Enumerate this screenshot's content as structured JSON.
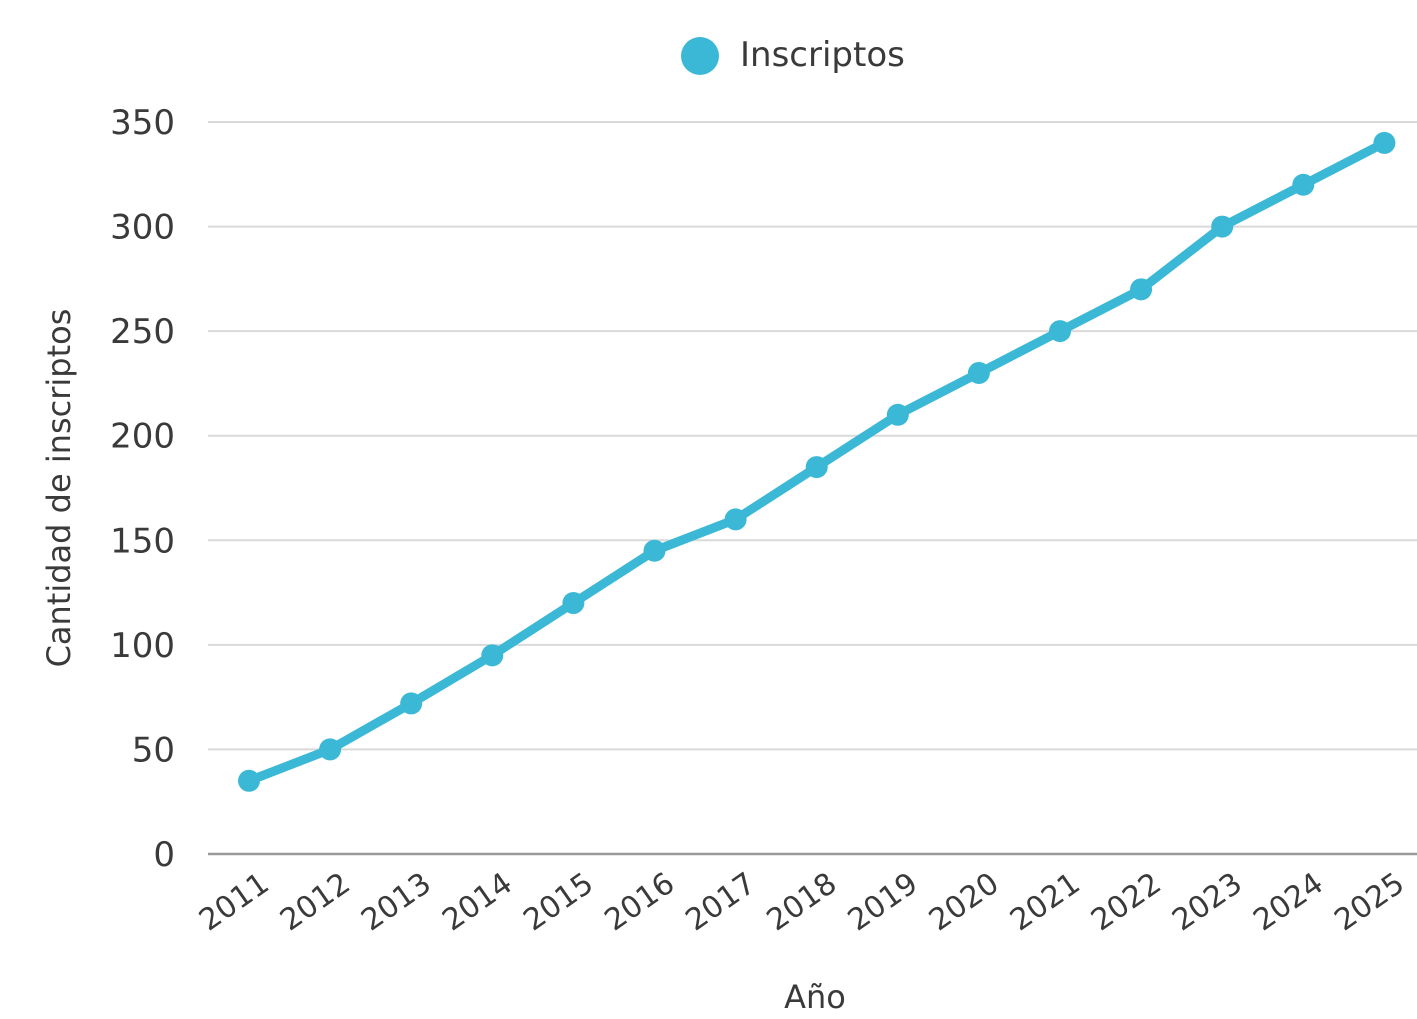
{
  "chart_data": {
    "type": "line",
    "title": "",
    "xlabel": "Año",
    "ylabel": "Cantidad de inscriptos",
    "categories": [
      "2011",
      "2012",
      "2013",
      "2014",
      "2015",
      "2016",
      "2017",
      "2018",
      "2019",
      "2020",
      "2021",
      "2022",
      "2023",
      "2024",
      "2025"
    ],
    "series": [
      {
        "name": "Inscriptos",
        "color": "#3bb8d6",
        "values": [
          35,
          50,
          72,
          95,
          120,
          145,
          160,
          185,
          210,
          230,
          250,
          270,
          300,
          320,
          340
        ]
      }
    ],
    "ylim": [
      0,
      350
    ],
    "yticks": [
      0,
      50,
      100,
      150,
      200,
      250,
      300,
      350
    ],
    "grid": true,
    "legend_position": "top-center",
    "gridline_color": "#d9d9d9",
    "axis_color": "#999999"
  }
}
